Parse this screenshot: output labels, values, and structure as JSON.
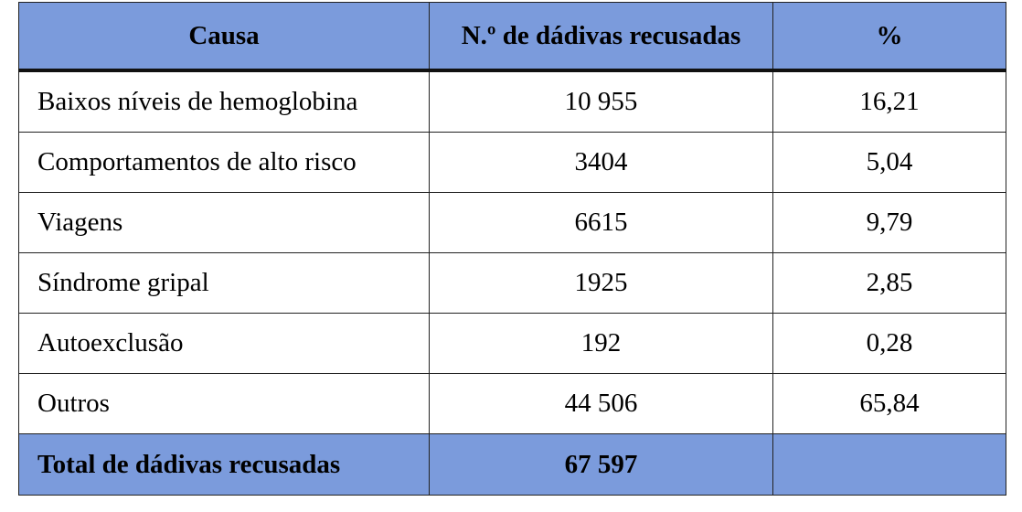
{
  "table": {
    "header": [
      "Causa",
      "N.º de dádivas recusadas",
      "%"
    ],
    "rows": [
      [
        "Baixos níveis de hemoglobina",
        "10 955",
        "16,21"
      ],
      [
        "Comportamentos de alto risco",
        "3404",
        "5,04"
      ],
      [
        "Viagens",
        "6615",
        "9,79"
      ],
      [
        "Síndrome gripal",
        "1925",
        "2,85"
      ],
      [
        "Autoexclusão",
        "192",
        "0,28"
      ],
      [
        "Outros",
        "44 506",
        "65,84"
      ]
    ],
    "total": [
      "Total de dádivas recusadas",
      "67 597"
    ]
  }
}
